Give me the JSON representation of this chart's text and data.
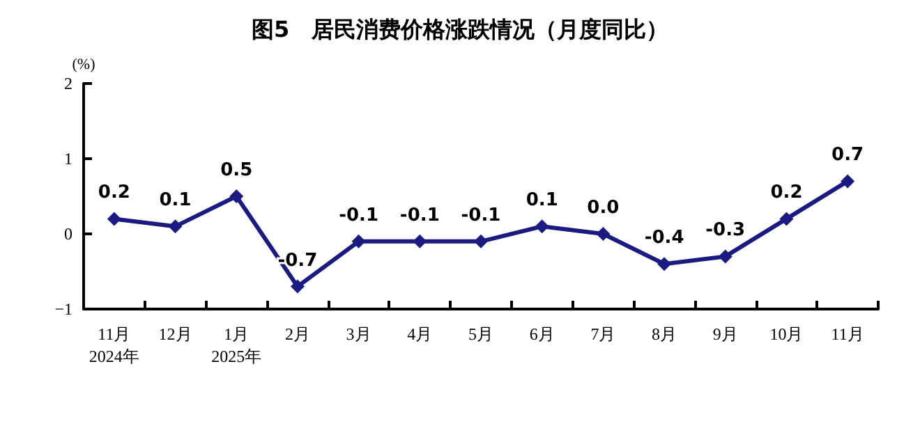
{
  "chart_data": {
    "type": "line",
    "title": "图5　居民消费价格涨跌情况（月度同比）",
    "ylabel": "(%)",
    "categories": [
      "11月\n2024年",
      "12月",
      "1月\n2025年",
      "2月",
      "3月",
      "4月",
      "5月",
      "6月",
      "7月",
      "8月",
      "9月",
      "10月",
      "11月"
    ],
    "series": [
      {
        "color": "#1a1a80",
        "values": [
          0.2,
          0.1,
          0.5,
          -0.7,
          -0.1,
          -0.1,
          -0.1,
          0.1,
          0.0,
          -0.4,
          -0.3,
          0.2,
          0.7
        ],
        "value_labels": [
          "0.2",
          "0.1",
          "0.5",
          "-0.7",
          "-0.1",
          "-0.1",
          "-0.1",
          "0.1",
          "0.0",
          "-0.4",
          "-0.3",
          "0.2",
          "0.7"
        ]
      }
    ],
    "ylim": [
      -1,
      2
    ],
    "yticks": [
      -1,
      0,
      1,
      2
    ],
    "grid": false,
    "marker": "diamond",
    "line_style": "solid"
  }
}
